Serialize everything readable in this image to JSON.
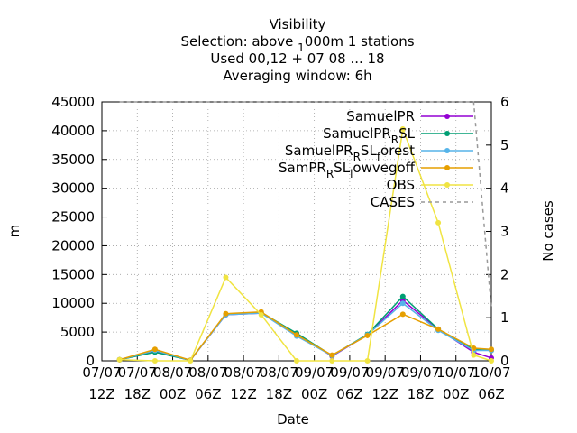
{
  "chart_data": {
    "type": "line",
    "title": [
      "Visibility",
      "Selection: above _1000m      1 stations",
      "Used  00,12 + 07 08 ... 18",
      "Averaging window:  6h"
    ],
    "xlabel": "Date",
    "ylabel": "m",
    "y2label": "No cases",
    "x": [
      3,
      9,
      15,
      21,
      27,
      33,
      39,
      45,
      51,
      57,
      63,
      66
    ],
    "xlim": [
      0,
      66
    ],
    "xticks": [
      {
        "value": 0,
        "label": [
          "07/07",
          "12Z"
        ]
      },
      {
        "value": 6,
        "label": [
          "07/07",
          "18Z"
        ]
      },
      {
        "value": 12,
        "label": [
          "08/07",
          "00Z"
        ]
      },
      {
        "value": 18,
        "label": [
          "08/07",
          "06Z"
        ]
      },
      {
        "value": 24,
        "label": [
          "08/07",
          "12Z"
        ]
      },
      {
        "value": 30,
        "label": [
          "08/07",
          "18Z"
        ]
      },
      {
        "value": 36,
        "label": [
          "09/07",
          "00Z"
        ]
      },
      {
        "value": 42,
        "label": [
          "09/07",
          "06Z"
        ]
      },
      {
        "value": 48,
        "label": [
          "09/07",
          "12Z"
        ]
      },
      {
        "value": 54,
        "label": [
          "09/07",
          "18Z"
        ]
      },
      {
        "value": 60,
        "label": [
          "10/07",
          "00Z"
        ]
      },
      {
        "value": 66,
        "label": [
          "10/07",
          "06Z"
        ]
      }
    ],
    "ylim": [
      0,
      45000
    ],
    "yticks": [
      0,
      5000,
      10000,
      15000,
      20000,
      25000,
      30000,
      35000,
      40000,
      45000
    ],
    "y2lim": [
      0,
      6
    ],
    "y2ticks": [
      0,
      1,
      2,
      3,
      4,
      5,
      6
    ],
    "grid": true,
    "series": [
      {
        "name": "SamuelPR",
        "color": "#9400d3",
        "values": [
          200,
          1700,
          100,
          8000,
          8300,
          4700,
          800,
          4500,
          10500,
          5500,
          1500,
          500
        ]
      },
      {
        "name": "SamuelPR_RSL",
        "color": "#009e73",
        "values": [
          200,
          1500,
          100,
          8100,
          8400,
          4800,
          900,
          4600,
          11200,
          5500,
          2000,
          1800
        ]
      },
      {
        "name": "SamuelPR_RSL_forest",
        "color": "#56b4e9",
        "values": [
          200,
          1800,
          100,
          8000,
          8300,
          4300,
          900,
          4500,
          10000,
          5300,
          1800,
          1800
        ]
      },
      {
        "name": "SamPR_RSL_lowvegoff",
        "color": "#e69f00",
        "values": [
          200,
          2000,
          100,
          8200,
          8500,
          4500,
          1000,
          4400,
          8100,
          5500,
          2200,
          2000
        ]
      },
      {
        "name": "OBS",
        "color": "#f0e442",
        "values": [
          200,
          0,
          0,
          14500,
          8000,
          0,
          0,
          0,
          40300,
          24000,
          1000,
          0
        ]
      },
      {
        "name": "CASES",
        "color": "#999999",
        "axis": "y2",
        "dashed": true,
        "values": [
          6,
          6,
          6,
          6,
          6,
          6,
          6,
          6,
          6,
          6,
          6,
          1.2
        ]
      }
    ]
  }
}
